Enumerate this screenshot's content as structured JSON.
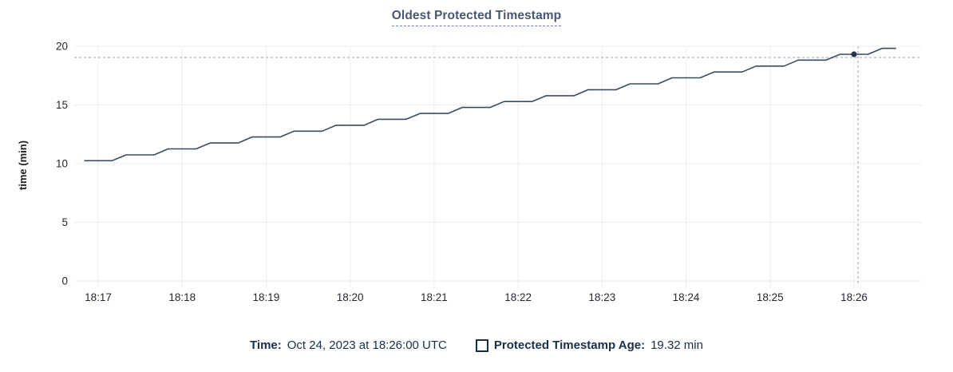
{
  "legend": {
    "time_label": "Time:",
    "time_value": "Oct 24, 2023 at 18:26:00 UTC",
    "series_label": "Protected Timestamp Age:",
    "series_value": "19.32 min"
  },
  "chart_data": {
    "type": "line",
    "title": "Oldest Protected Timestamp",
    "xlabel": "",
    "ylabel": "time (min)",
    "ylim": [
      0,
      20
    ],
    "yticks": [
      0,
      5,
      10,
      15,
      20
    ],
    "x_tick_labels": [
      "18:17",
      "18:18",
      "18:19",
      "18:20",
      "18:21",
      "18:22",
      "18:23",
      "18:24",
      "18:25",
      "18:26"
    ],
    "x_tick_seconds": [
      0,
      60,
      120,
      180,
      240,
      300,
      360,
      420,
      480,
      540
    ],
    "grid": true,
    "legend_position": "bottom",
    "series": [
      {
        "name": "Protected Timestamp Age",
        "unit": "min",
        "points": [
          [
            -10,
            10.25
          ],
          [
            10,
            10.25
          ],
          [
            20,
            10.75
          ],
          [
            40,
            10.75
          ],
          [
            50,
            11.26
          ],
          [
            70,
            11.26
          ],
          [
            80,
            11.76
          ],
          [
            100,
            11.76
          ],
          [
            110,
            12.27
          ],
          [
            130,
            12.27
          ],
          [
            140,
            12.77
          ],
          [
            160,
            12.77
          ],
          [
            170,
            13.27
          ],
          [
            190,
            13.27
          ],
          [
            200,
            13.78
          ],
          [
            220,
            13.78
          ],
          [
            230,
            14.28
          ],
          [
            250,
            14.28
          ],
          [
            260,
            14.79
          ],
          [
            280,
            14.79
          ],
          [
            290,
            15.29
          ],
          [
            310,
            15.29
          ],
          [
            320,
            15.79
          ],
          [
            340,
            15.79
          ],
          [
            350,
            16.3
          ],
          [
            370,
            16.3
          ],
          [
            380,
            16.8
          ],
          [
            400,
            16.8
          ],
          [
            410,
            17.31
          ],
          [
            430,
            17.31
          ],
          [
            440,
            17.81
          ],
          [
            460,
            17.81
          ],
          [
            470,
            18.31
          ],
          [
            490,
            18.31
          ],
          [
            500,
            18.82
          ],
          [
            520,
            18.82
          ],
          [
            530,
            19.32
          ],
          [
            550,
            19.32
          ],
          [
            560,
            19.82
          ],
          [
            570,
            19.82
          ]
        ]
      }
    ],
    "hover_point": {
      "t": 540,
      "value": 19.32,
      "time_label": "Oct 24, 2023 at 18:26:00 UTC",
      "value_label": "19.32 min"
    },
    "colors": {
      "line": "#3c4b61",
      "dot": "#26354b",
      "grid": "#ececec",
      "crosshair": "#a2b5bd",
      "tick_text": "#24292f",
      "axis_label": "#1b1f23",
      "title": "#475872",
      "legend_text": "#16304a"
    }
  }
}
